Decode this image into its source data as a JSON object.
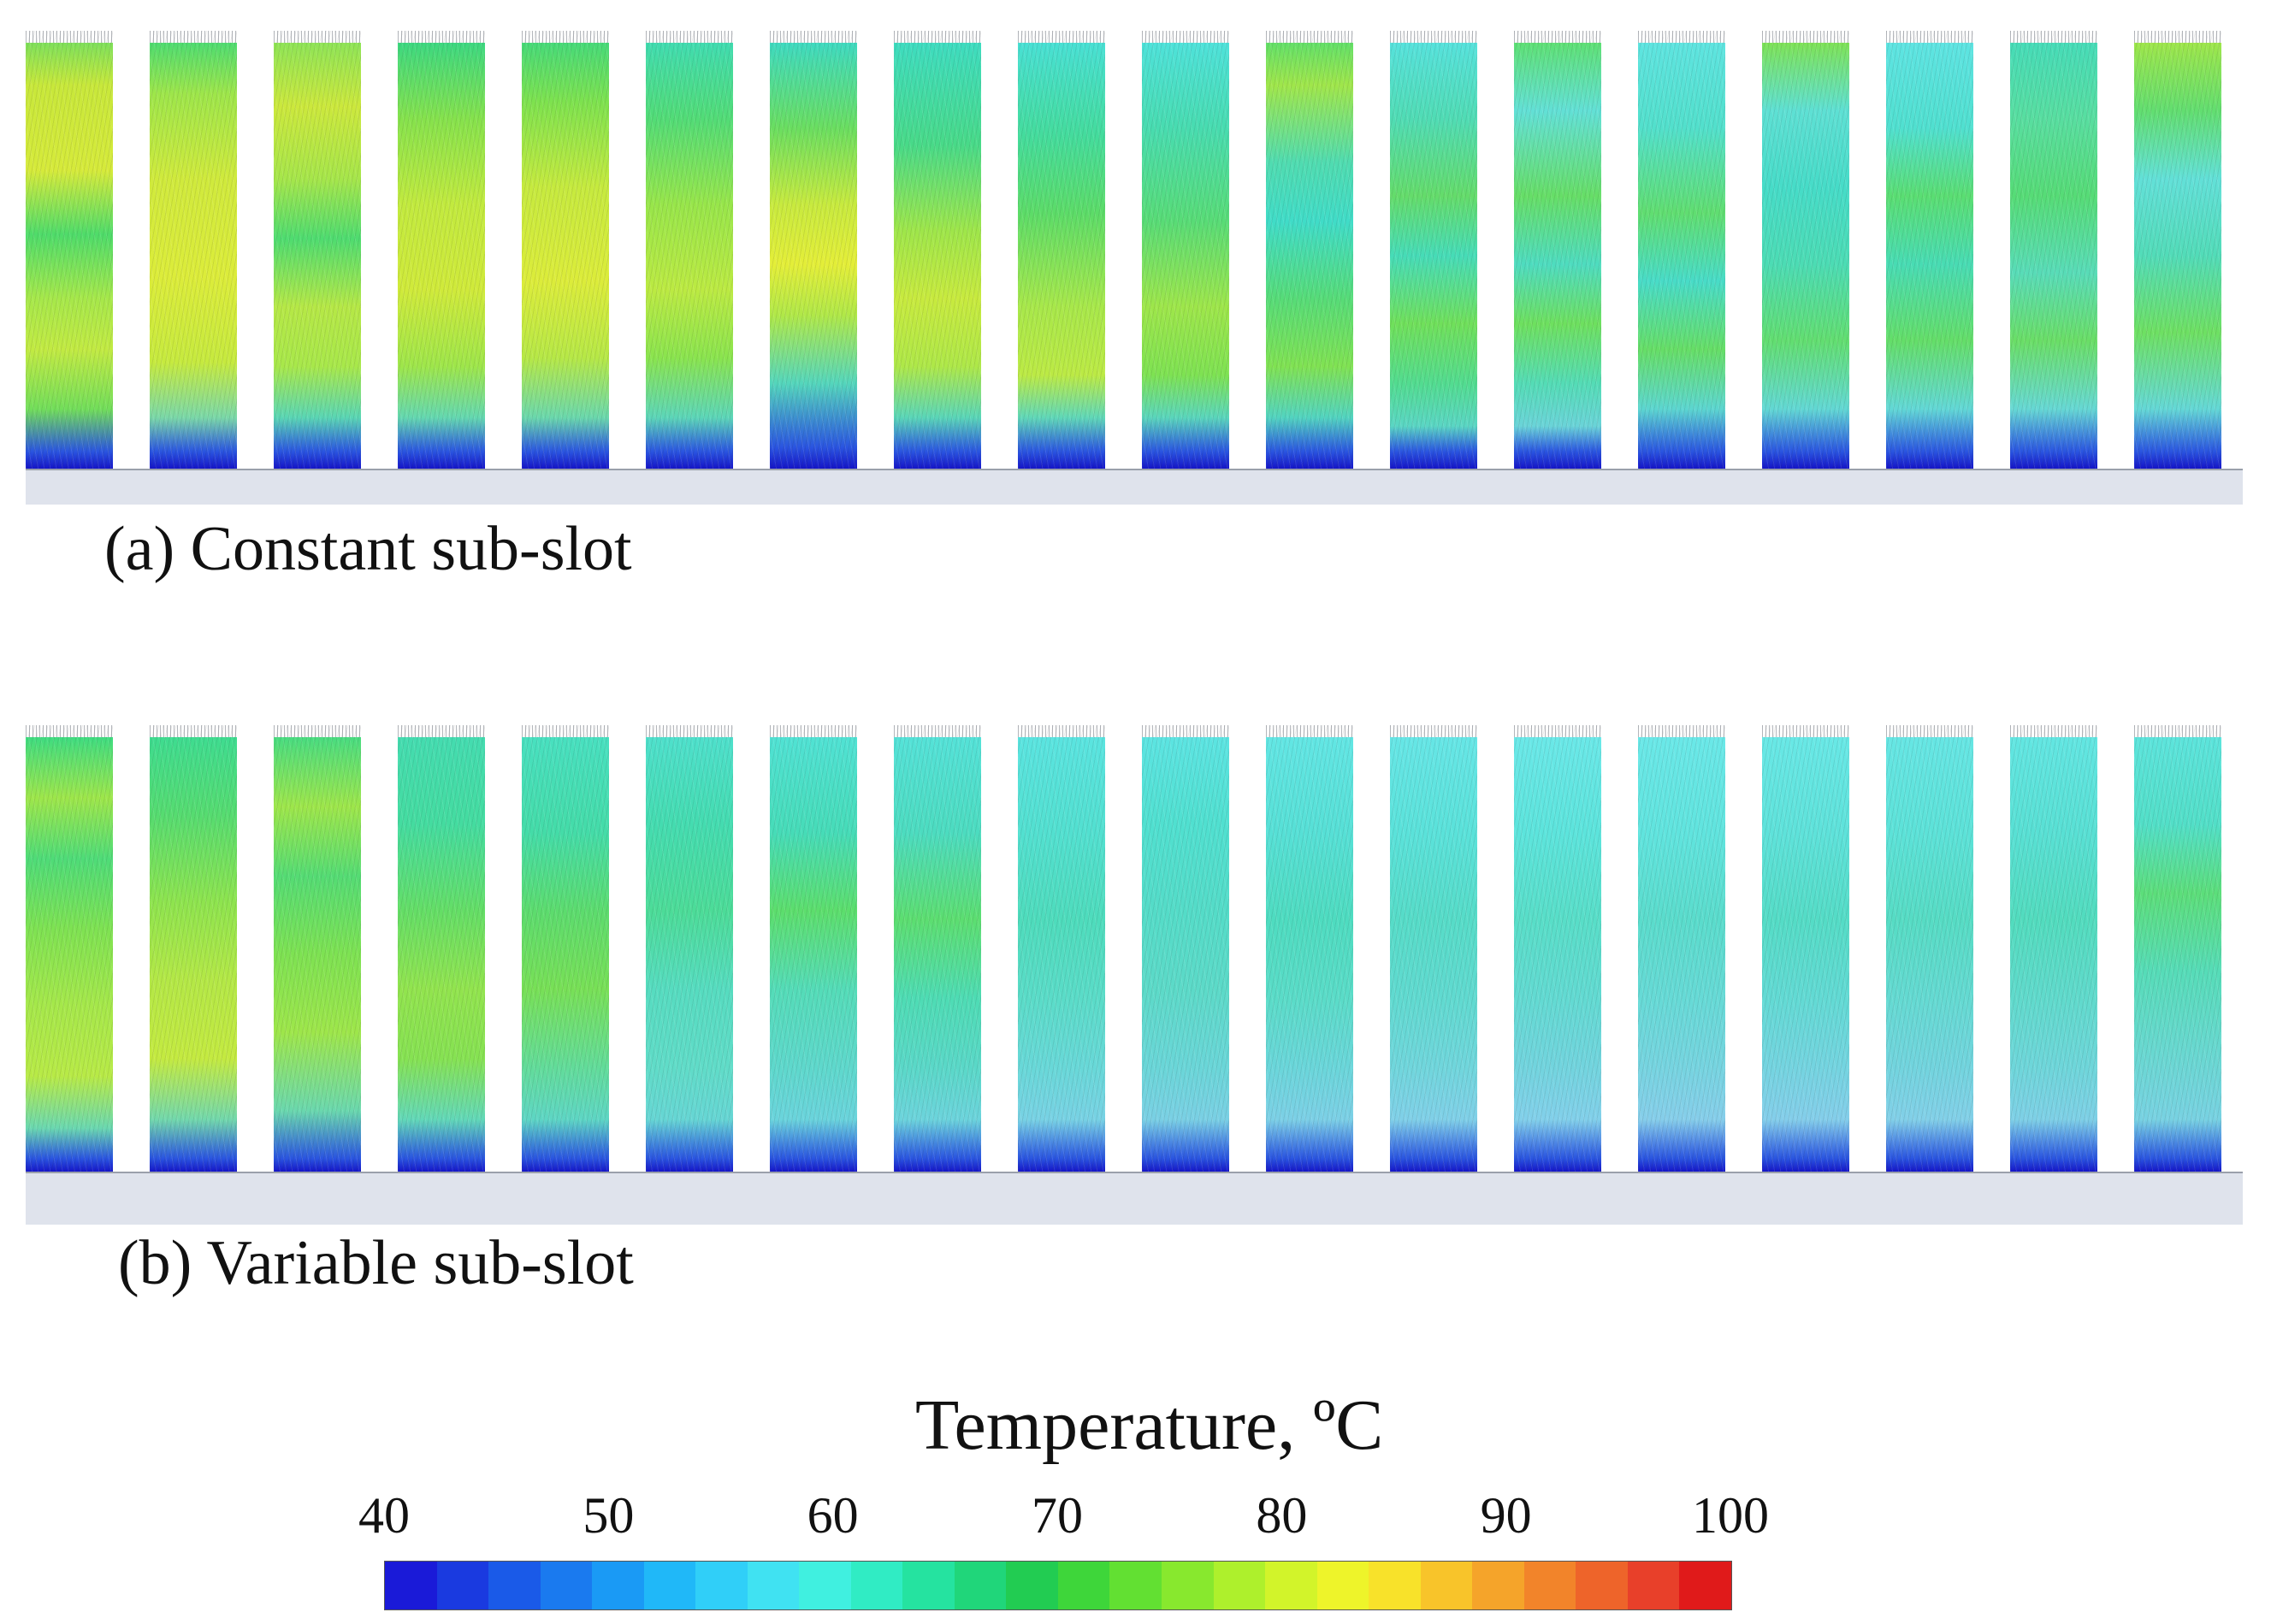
{
  "figure": {
    "caption_a": "(a) Constant sub-slot",
    "caption_b": "(b) Variable sub-slot",
    "slot_count_per_panel": 18
  },
  "colorbar": {
    "title": "Temperature, ºC",
    "min": 40,
    "max": 100,
    "ticks": [
      "40",
      "50",
      "60",
      "70",
      "80",
      "90",
      "100"
    ],
    "segment_colors": [
      "#1a1ad8",
      "#1a3ae0",
      "#1a5ae8",
      "#1a7aef",
      "#1a9af5",
      "#20b8f8",
      "#30cff8",
      "#40e2f2",
      "#40f0e0",
      "#30ecc4",
      "#25e3a0",
      "#20d67a",
      "#22cc52",
      "#3ed63a",
      "#62e032",
      "#88e82e",
      "#aef02c",
      "#d2f42a",
      "#eef42a",
      "#f8e22a",
      "#f8c42a",
      "#f5a42a",
      "#f2842a",
      "#ee642a",
      "#e8402a",
      "#e01a1a"
    ]
  },
  "slot_gradients": {
    "constant": [
      "linear-gradient(180deg,#7ee05a 0%,#c8e83a 10%,#d6ea3a 30%,#4edc6a 45%,#a6e84a 60%,#c2ea42 72%,#72de5a 86%,#2a54e0 96%,#1515c8 100%)",
      "linear-gradient(180deg,#4edc70 0%,#9ee64a 12%,#d0ea3c 32%,#dcec3a 55%,#c6ea3e 75%,#7ad8a8 88%,#2a54e0 96%,#1515c8 100%)",
      "linear-gradient(180deg,#8ee456 0%,#cce83c 15%,#a6e64a 32%,#4edc70 46%,#b6e846 62%,#a8e84a 76%,#5ad6b4 88%,#2a54e0 96%,#1515c8 100%)",
      "linear-gradient(180deg,#3cd880 0%,#86e24c 18%,#c2ea3e 38%,#d0ea3a 58%,#9ee64a 76%,#64d8b0 88%,#2a54e0 96%,#1515c8 100%)",
      "linear-gradient(180deg,#46da78 0%,#7ee24e 14%,#c6ea3e 34%,#dcec3a 56%,#b6e846 74%,#6ad8ac 88%,#2a54e0 96%,#1515c8 100%)",
      "linear-gradient(180deg,#40dcb0 0%,#52dc76 18%,#98e64a 38%,#bcea42 58%,#8ae44e 74%,#5cd6b8 88%,#2a54e0 96%,#1515c8 100%)",
      "linear-gradient(180deg,#3edac0 0%,#6ade60 20%,#c8ea3e 38%,#e4ee38 52%,#b0e848 64%,#54d6bc 80%,#2a54e0 95%,#1515c8 100%)",
      "linear-gradient(180deg,#3edcc0 0%,#48da88 24%,#9ee64a 44%,#c8ea3e 60%,#aee848 76%,#5ad6b8 88%,#2a54e0 96%,#1515c8 100%)",
      "linear-gradient(180deg,#48e0d4 0%,#44dc9c 22%,#5cdc68 40%,#a8e84a 62%,#bcea44 78%,#60d8b8 88%,#2a54e0 96%,#1515c8 100%)",
      "linear-gradient(180deg,#4ee2da 0%,#48dcb0 20%,#58dc76 42%,#9ee64a 62%,#7ee252 78%,#5ad6bc 88%,#2a54e0 96%,#1515c8 100%)",
      "linear-gradient(180deg,#62e068 0%,#a0e64a 10%,#50dcb0 28%,#40dcc8 42%,#56dc78 60%,#80e252 76%,#52d4c0 88%,#2a54e0 96%,#1515c8 100%)",
      "linear-gradient(180deg,#56e2dc 0%,#50dcb4 18%,#64dc6a 36%,#46dcb8 50%,#70e05a 66%,#52dc90 80%,#5ad6c4 90%,#2a54e0 96%,#1515c8 100%)",
      "linear-gradient(180deg,#5ee074 0%,#62e0d6 16%,#66de66 36%,#4edcc0 52%,#6ee05e 66%,#54dcb6 80%,#6ad4d8 90%,#2a54e0 96%,#1515c8 100%)",
      "linear-gradient(180deg,#5ee4e0 0%,#52e0cc 20%,#60de70 40%,#48dcc8 56%,#66de66 72%,#5cd6d0 86%,#2a54e0 96%,#1515c8 100%)",
      "linear-gradient(180deg,#7ee256 0%,#5ee0d4 16%,#46dcc8 34%,#4cdcb4 52%,#62de70 70%,#62d8d4 86%,#2a54e0 96%,#1515c8 100%)",
      "linear-gradient(180deg,#5ee4e2 0%,#50e0d0 20%,#5ade72 36%,#48dcb4 52%,#64de68 70%,#62d8d6 86%,#2a54e0 96%,#1515c8 100%)",
      "linear-gradient(180deg,#46dcb8 0%,#58dea0 18%,#56dc76 36%,#58dcb8 54%,#6ade66 70%,#66d8d4 86%,#2a54e0 96%,#1515c8 100%)",
      "linear-gradient(180deg,#9ee64a 0%,#62de70 16%,#62e0d8 32%,#52dcb8 50%,#6ee062 68%,#64d8d6 86%,#2a54e0 96%,#1515c8 100%)"
    ],
    "variable": [
      "linear-gradient(180deg,#3edc80 0%,#9ee64a 14%,#4edc78 28%,#7ee252 44%,#a6e84a 62%,#b8ea46 78%,#6ad8b0 90%,#2a54e0 97%,#1515c8 100%)",
      "linear-gradient(180deg,#3edc90 0%,#56dc70 18%,#8ee44e 38%,#b4e846 56%,#c4ea40 74%,#72d8ac 88%,#2a54e0 97%,#1515c8 100%)",
      "linear-gradient(180deg,#48dc80 0%,#9ee64a 16%,#54dc74 32%,#7ee252 50%,#9ee64a 68%,#6ad8ae 86%,#2a54e0 97%,#1515c8 100%)",
      "linear-gradient(180deg,#44dcb0 0%,#44dca0 20%,#64de66 40%,#92e44e 58%,#86e252 74%,#62d8b8 88%,#2a54e0 97%,#1515c8 100%)",
      "linear-gradient(180deg,#48e0c0 0%,#44dca8 22%,#5cdc6e 40%,#78e056 58%,#62dc9a 76%,#5ed6c4 88%,#2a54e0 97%,#1515c8 100%)",
      "linear-gradient(180deg,#4ee0cc 0%,#44dcb0 20%,#4cdc98 40%,#56dcc0 58%,#60dcc8 76%,#66d6d4 88%,#2a54e0 97%,#1515c8 100%)",
      "linear-gradient(180deg,#50e2d4 0%,#46dcb8 22%,#5cde6c 40%,#54dcb8 58%,#5ed8cc 76%,#6ad4dc 88%,#2a54e0 97%,#1515c8 100%)",
      "linear-gradient(180deg,#54e2d8 0%,#4cdcc0 22%,#5cde70 42%,#4edcb4 60%,#5ad8c8 76%,#6cd4dc 88%,#2a54e0 97%,#1515c8 100%)",
      "linear-gradient(180deg,#5ae4e0 0%,#52e0d0 22%,#4edcbc 42%,#5adcc8 60%,#68d8d8 76%,#78d2e4 88%,#2a54e0 97%,#1515c8 100%)",
      "linear-gradient(180deg,#5ce4e2 0%,#50e0d0 20%,#54dcc8 40%,#5cdac8 58%,#6ad6d8 76%,#7ad0e4 88%,#2a54e0 97%,#1515c8 100%)",
      "linear-gradient(180deg,#62e6e4 0%,#56e0d6 22%,#4edcc0 42%,#5adcc8 60%,#6ad6da 76%,#7cd0e6 88%,#2a54e0 97%,#1515c8 100%)",
      "linear-gradient(180deg,#66e6e6 0%,#5ae2da 22%,#56dcc8 42%,#60dad0 60%,#70d6dc 76%,#80d0e8 88%,#2a54e0 97%,#1515c8 100%)",
      "linear-gradient(180deg,#6ae8e8 0%,#5ce4dc 22%,#58dec8 42%,#62dad2 60%,#72d4de 76%,#82d0ea 88%,#2a54e0 97%,#1515c8 100%)",
      "linear-gradient(180deg,#6ae8e8 0%,#60e4de 22%,#5adccc 42%,#66dad6 60%,#76d4e0 76%,#86ceea 88%,#2a54e0 97%,#1515c8 100%)",
      "linear-gradient(180deg,#68e8e6 0%,#5ee2da 22%,#54dcc6 42%,#62dad4 60%,#74d4e0 76%,#84ceea 88%,#2a54e0 97%,#1515c8 100%)",
      "linear-gradient(180deg,#66e6e4 0%,#5ce2d8 22%,#56dcc4 42%,#64dad2 60%,#72d4de 76%,#82d0e8 88%,#2a54e0 97%,#1515c8 100%)",
      "linear-gradient(180deg,#62e6e2 0%,#58e0d4 22%,#52dcbe 42%,#60dacc 60%,#6ed6da 76%,#7ed0e6 88%,#2a54e0 97%,#1515c8 100%)",
      "linear-gradient(180deg,#5ce4dc 0%,#52dfc8 20%,#5cde7a 36%,#56dcb8 54%,#68d8d0 72%,#78d2e2 88%,#2a54e0 97%,#1515c8 100%)"
    ]
  }
}
